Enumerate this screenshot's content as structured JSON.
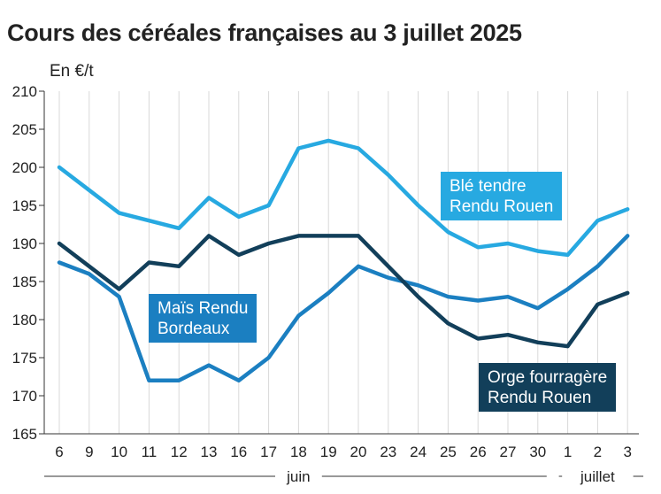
{
  "chart_data": {
    "type": "line",
    "title": "Cours des céréales françaises au 3 juillet 2025",
    "ylabel": "En €/t",
    "xlabel": "",
    "ylim": [
      165,
      210
    ],
    "yticks": [
      165,
      170,
      175,
      180,
      185,
      190,
      195,
      200,
      205,
      210
    ],
    "categories": [
      "6",
      "9",
      "10",
      "11",
      "12",
      "13",
      "16",
      "17",
      "18",
      "19",
      "20",
      "23",
      "24",
      "25",
      "26",
      "27",
      "30",
      "1",
      "2",
      "3"
    ],
    "months": [
      {
        "label": "juin",
        "from": 0,
        "to": 16
      },
      {
        "label": "juillet",
        "from": 17,
        "to": 19
      }
    ],
    "grid": "vertical",
    "series": [
      {
        "name": "Blé tendre Rendu Rouen",
        "label_lines": [
          "Blé tendre",
          "Rendu Rouen"
        ],
        "color": "#27a9e1",
        "values": [
          200,
          197,
          194,
          193,
          192,
          196,
          193.5,
          195,
          202.5,
          203.5,
          202.5,
          199,
          195,
          191.5,
          189.5,
          190,
          189,
          188.5,
          193,
          194.5
        ]
      },
      {
        "name": "Maïs Rendu Bordeaux",
        "label_lines": [
          "Maïs Rendu",
          "Bordeaux"
        ],
        "color": "#1b7fc1",
        "values": [
          187.5,
          186,
          183,
          172,
          172,
          174,
          172,
          175,
          180.5,
          183.5,
          187,
          185.5,
          184.5,
          183,
          182.5,
          183,
          181.5,
          184,
          187,
          191
        ]
      },
      {
        "name": "Orge fourragère Rendu Rouen",
        "label_lines": [
          "Orge fourragère",
          "Rendu Rouen"
        ],
        "color": "#123f5a",
        "values": [
          190,
          187,
          184,
          187.5,
          187,
          191,
          188.5,
          190,
          191,
          191,
          191,
          187,
          183,
          179.5,
          177.5,
          178,
          177,
          176.5,
          182,
          183.5
        ]
      }
    ]
  }
}
